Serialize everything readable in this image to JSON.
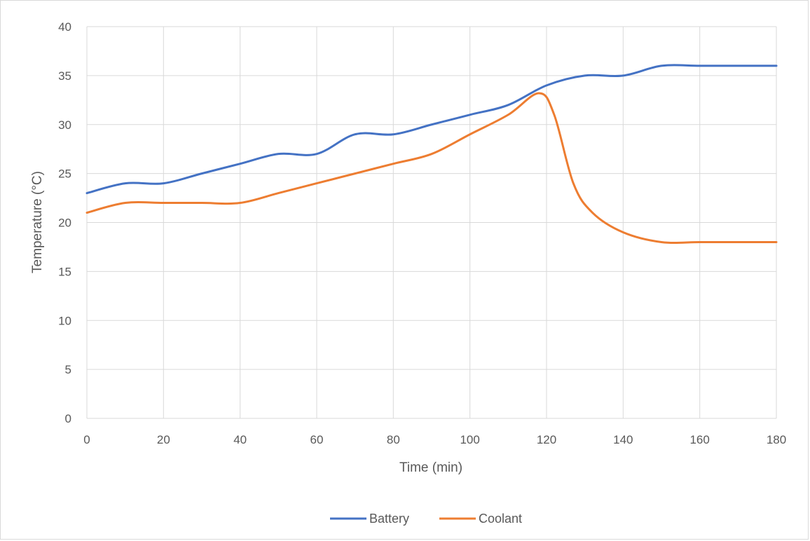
{
  "chart_data": {
    "type": "line",
    "title": "",
    "xlabel": "Time (min)",
    "ylabel": "Temperature (°C)",
    "xlim": [
      0,
      180
    ],
    "ylim": [
      0,
      40
    ],
    "xticks": [
      0,
      20,
      40,
      60,
      80,
      100,
      120,
      140,
      160,
      180
    ],
    "yticks": [
      0,
      5,
      10,
      15,
      20,
      25,
      30,
      35,
      40
    ],
    "grid": true,
    "legend_position": "bottom",
    "series": [
      {
        "name": "Battery",
        "color": "#4472c4",
        "x": [
          0,
          10,
          20,
          30,
          40,
          50,
          60,
          70,
          80,
          90,
          100,
          110,
          120,
          130,
          140,
          150,
          160,
          170,
          180
        ],
        "y": [
          23,
          24,
          24,
          25,
          26,
          27,
          27,
          29,
          29,
          30,
          31,
          32,
          34,
          35,
          35,
          36,
          36,
          36,
          36
        ]
      },
      {
        "name": "Coolant",
        "color": "#ed7d31",
        "x": [
          0,
          10,
          20,
          30,
          40,
          50,
          60,
          70,
          80,
          90,
          100,
          110,
          118,
          122,
          127,
          132,
          140,
          150,
          160,
          170,
          180
        ],
        "y": [
          21,
          22,
          22,
          22,
          22,
          23,
          24,
          25,
          26,
          27,
          29,
          31,
          33.2,
          31,
          24,
          21,
          19,
          18,
          18,
          18,
          18
        ]
      }
    ]
  }
}
